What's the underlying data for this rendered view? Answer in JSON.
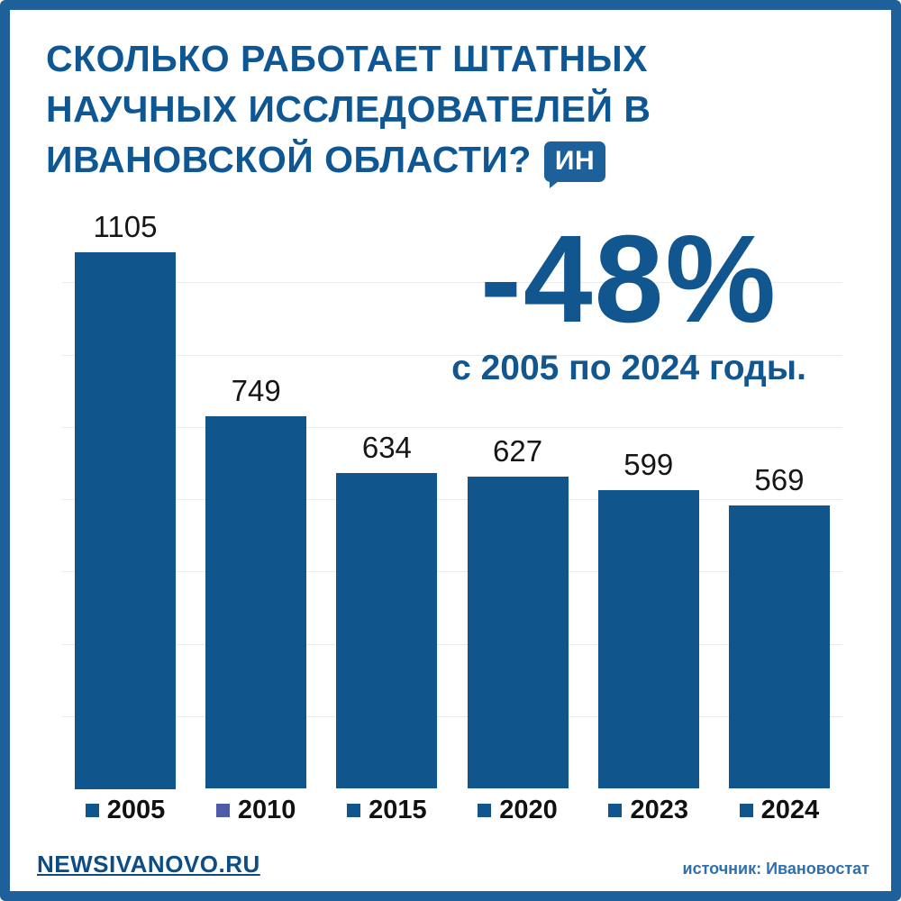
{
  "theme": {
    "border": "#1d609a",
    "title_color": "#0e5793",
    "bar_color": "#10568c",
    "highlight_color": "#11568e"
  },
  "title": {
    "lines": [
      "СКОЛЬКО РАБОТАЕТ ШТАТНЫХ",
      "НАУЧНЫХ ИССЛЕДОВАТЕЛЕЙ В",
      "ИВАНОВСКОЙ ОБЛАСТИ?"
    ],
    "badge": "ИН"
  },
  "highlight": {
    "value": "-48%",
    "caption": "с 2005 по 2024 годы."
  },
  "footer": {
    "site": "NEWSIVANOVO.RU",
    "source": "источник: Ивановостат"
  },
  "chart_data": {
    "type": "bar",
    "title": "Сколько работает штатных научных исследователей в Ивановской области?",
    "categories": [
      "2005",
      "2010",
      "2015",
      "2020",
      "2023",
      "2024"
    ],
    "values": [
      1105,
      749,
      634,
      627,
      599,
      569
    ],
    "ylim": [
      0,
      1105
    ],
    "grid": true,
    "legend_position": "below-bars",
    "bar_color": "#10568c",
    "legend_marker_colors": [
      "#10568c",
      "#4f5aa8",
      "#10568c",
      "#10568c",
      "#10568c",
      "#10568c"
    ],
    "annotation": {
      "text": "-48%",
      "subtext": "с 2005 по 2024 годы."
    },
    "source": "Ивановостат"
  }
}
